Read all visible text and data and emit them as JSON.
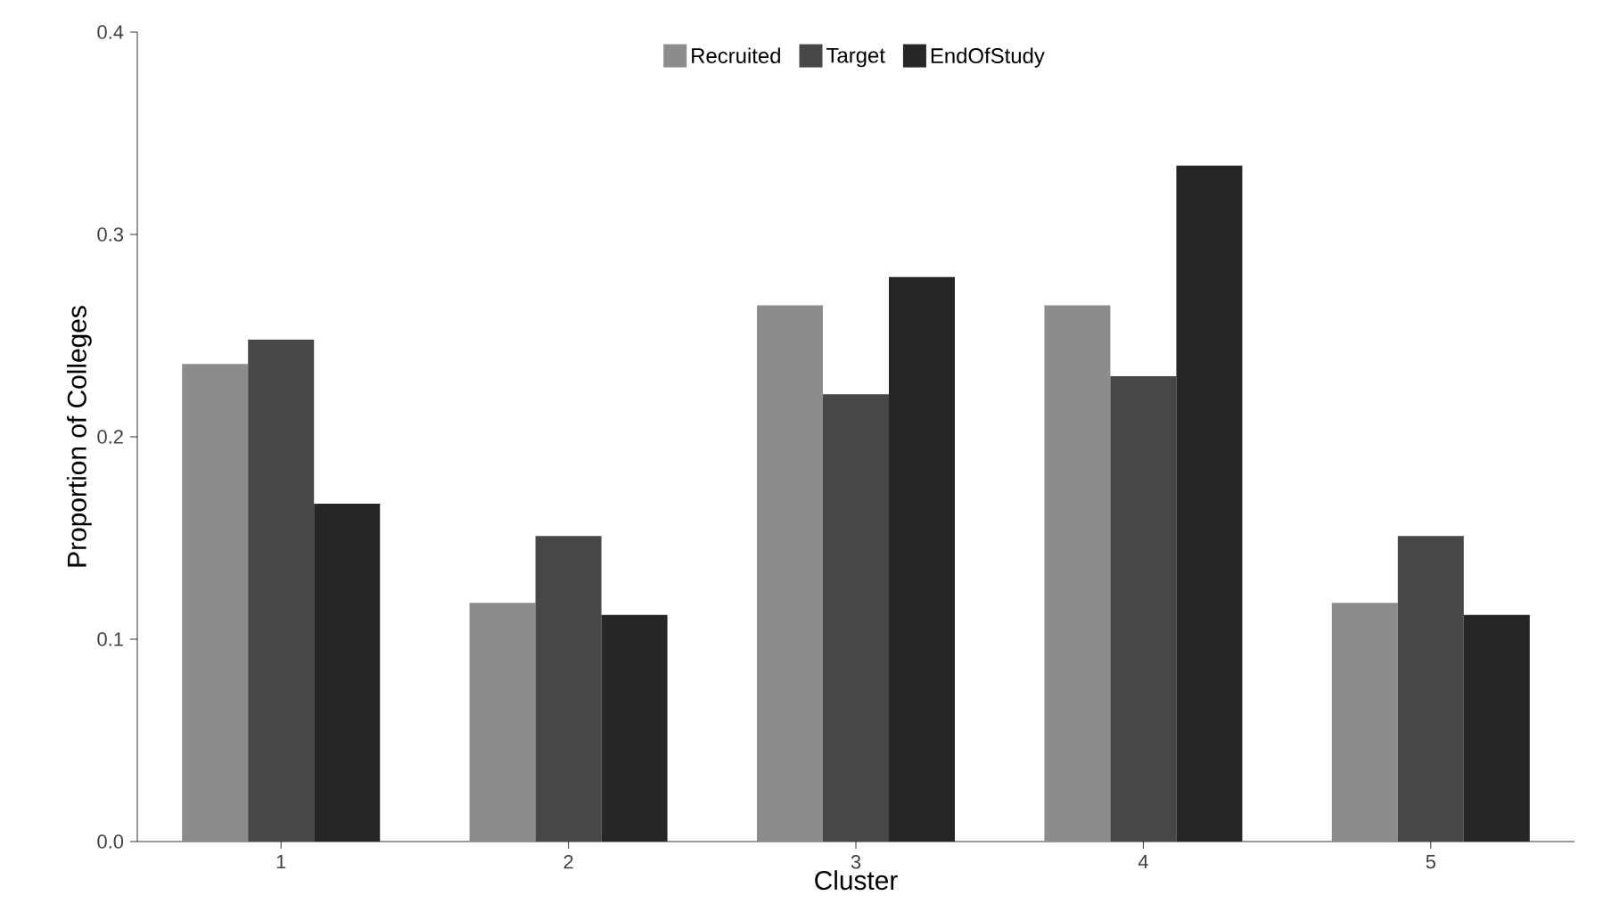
{
  "chart_data": {
    "type": "bar",
    "xlabel": "Cluster",
    "ylabel": "Proportion of Colleges",
    "categories": [
      "1",
      "2",
      "3",
      "4",
      "5"
    ],
    "series": [
      {
        "name": "Recruited",
        "color": "#8c8c8c",
        "values": [
          0.236,
          0.118,
          0.265,
          0.265,
          0.118
        ]
      },
      {
        "name": "Target",
        "color": "#474747",
        "values": [
          0.248,
          0.151,
          0.221,
          0.23,
          0.151
        ]
      },
      {
        "name": "EndOfStudy",
        "color": "#262626",
        "values": [
          0.167,
          0.112,
          0.279,
          0.334,
          0.112
        ]
      }
    ],
    "ylim": [
      0,
      0.4
    ],
    "yticks": [
      {
        "value": 0,
        "label": "0.0"
      },
      {
        "value": 0.1,
        "label": "0.1"
      },
      {
        "value": 0.2,
        "label": "0.2"
      },
      {
        "value": 0.3,
        "label": "0.3"
      },
      {
        "value": 0.4,
        "label": "0.4"
      }
    ],
    "grid": false,
    "legend": "top"
  }
}
